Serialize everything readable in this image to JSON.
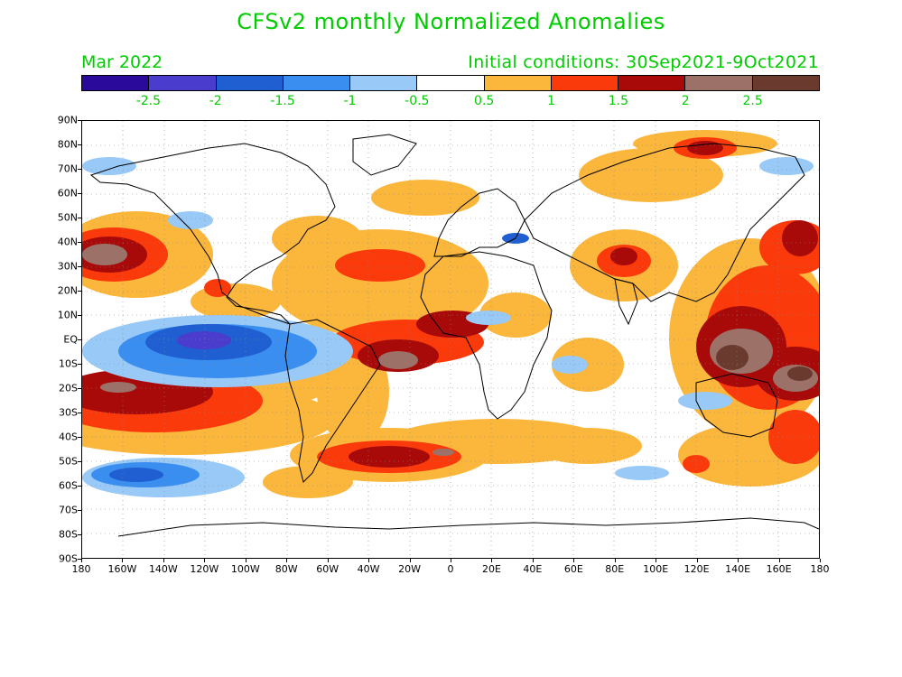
{
  "title": "CFSv2 monthly Normalized Anomalies",
  "valid_month": "Mar 2022",
  "initial_conditions": "Initial conditions: 30Sep2021-9Oct2021",
  "colorbar": {
    "colors": [
      "#2a0a9a",
      "#4a3ccc",
      "#1f5fd1",
      "#3a8ef0",
      "#99c9f7",
      "#ffffff",
      "#fbb63c",
      "#fb3a0c",
      "#a80a0a",
      "#9c7268",
      "#6b3a2e"
    ],
    "labels": [
      "-2.5",
      "-2",
      "-1.5",
      "-1",
      "-0.5",
      "0.5",
      "1",
      "1.5",
      "2",
      "2.5"
    ]
  },
  "axes": {
    "lat_labels": [
      "90N",
      "80N",
      "70N",
      "60N",
      "50N",
      "40N",
      "30N",
      "20N",
      "10N",
      "EQ",
      "10S",
      "20S",
      "30S",
      "40S",
      "50S",
      "60S",
      "70S",
      "80S",
      "90S"
    ],
    "lon_labels": [
      "180",
      "160W",
      "140W",
      "120W",
      "100W",
      "80W",
      "60W",
      "40W",
      "20W",
      "0",
      "20E",
      "40E",
      "60E",
      "80E",
      "100E",
      "120E",
      "140E",
      "160E",
      "180"
    ]
  }
}
